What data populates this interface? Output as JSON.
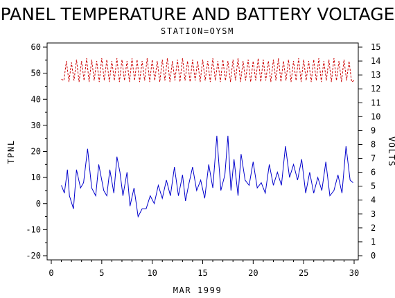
{
  "chart_data": {
    "type": "line",
    "title": "PANEL TEMPERATURE AND BATTERY VOLTAGE",
    "subtitle": "STATION=OYSM",
    "xlabel": "MAR 1999",
    "ylabel": "TPNL",
    "y2label": "VOLTS",
    "xlim": [
      0,
      30
    ],
    "ylim": [
      -20,
      60
    ],
    "y2lim": [
      0,
      15
    ],
    "xticks": [
      "0",
      "5",
      "10",
      "15",
      "20",
      "25",
      "30"
    ],
    "yticks": [
      "-20",
      "-10",
      "0",
      "10",
      "20",
      "30",
      "40",
      "50",
      "60"
    ],
    "y2ticks": [
      "0",
      "1",
      "2",
      "3",
      "4",
      "5",
      "6",
      "7",
      "8",
      "9",
      "10",
      "11",
      "12",
      "13",
      "14",
      "15"
    ],
    "grid": false,
    "legend": "none",
    "series": [
      {
        "axis": "left",
        "color": "#0000cc",
        "style": "solid",
        "x": [
          1.0,
          1.3,
          1.6,
          1.8,
          2.2,
          2.5,
          2.9,
          3.2,
          3.6,
          4.0,
          4.4,
          4.7,
          5.2,
          5.5,
          5.8,
          6.2,
          6.5,
          6.8,
          7.1,
          7.5,
          7.8,
          8.2,
          8.6,
          9.0,
          9.4,
          9.8,
          10.2,
          10.6,
          11.0,
          11.4,
          11.8,
          12.2,
          12.6,
          13.0,
          13.3,
          13.6,
          14.0,
          14.4,
          14.8,
          15.2,
          15.6,
          16.0,
          16.4,
          16.8,
          17.2,
          17.5,
          17.8,
          18.1,
          18.5,
          18.8,
          19.2,
          19.6,
          20.0,
          20.4,
          20.8,
          21.2,
          21.6,
          22.0,
          22.4,
          22.8,
          23.2,
          23.6,
          24.0,
          24.4,
          24.8,
          25.2,
          25.6,
          26.0,
          26.4,
          26.8,
          27.2,
          27.6,
          28.0,
          28.4,
          28.8,
          29.2,
          29.6,
          29.9
        ],
        "y": [
          7,
          4,
          13,
          3,
          -2,
          13,
          6,
          8,
          21,
          6,
          3,
          15,
          5,
          3,
          13,
          4,
          18,
          12,
          3,
          12,
          -1,
          6,
          -5,
          -2,
          -2,
          3,
          0,
          7,
          2,
          9,
          3,
          14,
          3,
          11,
          1,
          7,
          14,
          5,
          9,
          2,
          15,
          6,
          26,
          5,
          11,
          26,
          5,
          17,
          3,
          19,
          9,
          7,
          16,
          6,
          8,
          4,
          15,
          7,
          12,
          7,
          22,
          10,
          15,
          9,
          17,
          4,
          12,
          4,
          10,
          5,
          16,
          3,
          5,
          11,
          4,
          22,
          9,
          8
        ]
      },
      {
        "axis": "right",
        "color": "#cc0000",
        "style": "dashed",
        "x": [
          1.0,
          1.25,
          1.5,
          1.75,
          2.0,
          2.25,
          2.5,
          2.75,
          3.0,
          3.25,
          3.5,
          3.75,
          4.0,
          4.25,
          4.5,
          4.75,
          5.0,
          5.25,
          5.5,
          5.75,
          6.0,
          6.25,
          6.5,
          6.75,
          7.0,
          7.25,
          7.5,
          7.75,
          8.0,
          8.25,
          8.5,
          8.75,
          9.0,
          9.25,
          9.5,
          9.75,
          10.0,
          10.25,
          10.5,
          10.75,
          11.0,
          11.25,
          11.5,
          11.75,
          12.0,
          12.25,
          12.5,
          12.75,
          13.0,
          13.25,
          13.5,
          13.75,
          14.0,
          14.25,
          14.5,
          14.75,
          15.0,
          15.25,
          15.5,
          15.75,
          16.0,
          16.25,
          16.5,
          16.75,
          17.0,
          17.25,
          17.5,
          17.75,
          18.0,
          18.25,
          18.5,
          18.75,
          19.0,
          19.25,
          19.5,
          19.75,
          20.0,
          20.25,
          20.5,
          20.75,
          21.0,
          21.25,
          21.5,
          21.75,
          22.0,
          22.25,
          22.5,
          22.75,
          23.0,
          23.25,
          23.5,
          23.75,
          24.0,
          24.25,
          24.5,
          24.75,
          25.0,
          25.25,
          25.5,
          25.75,
          26.0,
          26.25,
          26.5,
          26.75,
          27.0,
          27.25,
          27.5,
          27.75,
          28.0,
          28.25,
          28.5,
          28.75,
          29.0,
          29.25,
          29.5,
          29.75,
          30.0
        ],
        "y": [
          12.7,
          12.6,
          14.0,
          12.5,
          13.9,
          12.6,
          14.1,
          12.5,
          14.0,
          12.6,
          14.2,
          12.5,
          14.1,
          12.6,
          14.0,
          12.5,
          14.2,
          12.6,
          14.1,
          12.5,
          14.0,
          12.6,
          14.2,
          12.5,
          14.1,
          12.6,
          14.0,
          12.5,
          14.2,
          12.6,
          14.1,
          12.5,
          14.0,
          12.6,
          14.2,
          12.5,
          14.1,
          12.6,
          14.0,
          12.5,
          14.1,
          12.6,
          14.2,
          12.5,
          14.0,
          12.6,
          14.1,
          12.5,
          14.2,
          12.6,
          14.0,
          12.5,
          14.1,
          12.6,
          14.0,
          12.5,
          14.1,
          12.6,
          14.0,
          12.5,
          14.2,
          12.6,
          14.0,
          12.5,
          14.1,
          12.6,
          14.0,
          12.5,
          14.1,
          12.6,
          14.2,
          12.5,
          14.0,
          12.6,
          14.1,
          12.5,
          14.0,
          12.6,
          14.2,
          12.5,
          14.1,
          12.6,
          14.0,
          12.5,
          14.1,
          12.6,
          14.2,
          12.5,
          14.0,
          12.6,
          14.1,
          12.5,
          14.0,
          12.6,
          14.2,
          12.5,
          14.1,
          12.6,
          14.0,
          12.5,
          14.1,
          12.6,
          14.2,
          12.5,
          14.0,
          12.6,
          14.1,
          12.5,
          14.2,
          12.6,
          14.0,
          12.5,
          14.1,
          12.6,
          14.0,
          12.5,
          12.6
        ]
      }
    ]
  }
}
